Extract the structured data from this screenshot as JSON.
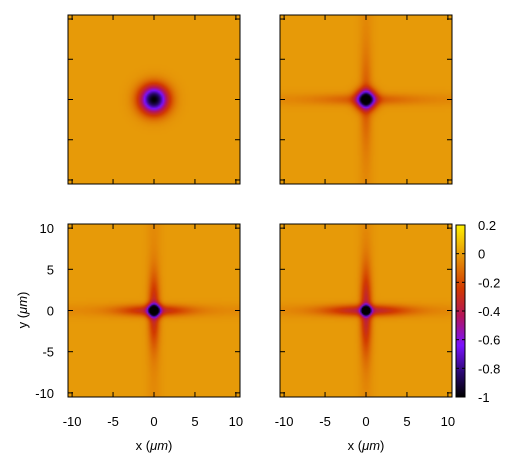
{
  "chart_data": {
    "type": "heatmap",
    "layout": "2x2 grid of panels",
    "shared_x_axis": {
      "label_prefix": "x (",
      "label_unit": "μm",
      "label_suffix": ")",
      "range": [
        -10.5,
        10.5
      ],
      "ticks": [
        -10,
        -5,
        0,
        5,
        10
      ],
      "tick_labels": [
        "-10",
        "-5",
        "0",
        "5",
        "10"
      ]
    },
    "shared_y_axis": {
      "label_prefix": "y (",
      "label_unit": "μm",
      "label_suffix": ")",
      "range": [
        -10.5,
        10.5
      ],
      "ticks": [
        -10,
        -5,
        0,
        5,
        10
      ],
      "tick_labels": [
        "-10",
        "-5",
        "0",
        "5",
        "10"
      ]
    },
    "colorbar": {
      "range": [
        -1,
        0.2
      ],
      "ticks": [
        0.2,
        0,
        -0.2,
        -0.4,
        -0.6,
        -0.8,
        -1
      ],
      "tick_labels": [
        "0.2",
        "0",
        "-0.2",
        "-0.4",
        "-0.6",
        "-0.8",
        "-1"
      ],
      "palette": "black-purple-red-orange-yellow"
    },
    "panels": [
      {
        "position": "top-left",
        "x_tick_labels_shown": false,
        "y_tick_labels_shown": false,
        "center": [
          0,
          0
        ],
        "min_value": -1,
        "background_value": 0,
        "feature": "isotropic circular dip",
        "core_radius": 1.2,
        "cross_arm_strength": 0,
        "cross_arm_length": 0
      },
      {
        "position": "top-right",
        "x_tick_labels_shown": false,
        "y_tick_labels_shown": false,
        "center": [
          0,
          0
        ],
        "min_value": -1,
        "background_value": 0,
        "feature": "dip with weak cross arms",
        "core_radius": 0.8,
        "cross_arm_strength": 0.12,
        "cross_arm_length": 4
      },
      {
        "position": "bottom-left",
        "x_tick_labels_shown": true,
        "y_tick_labels_shown": true,
        "center": [
          0,
          0
        ],
        "min_value": -1,
        "background_value": 0,
        "feature": "dip with cross-shaped arms",
        "core_radius": 0.5,
        "cross_arm_strength": 0.3,
        "cross_arm_length": 3
      },
      {
        "position": "bottom-right",
        "x_tick_labels_shown": true,
        "y_tick_labels_shown": false,
        "center": [
          0,
          0
        ],
        "min_value": -1,
        "background_value": 0,
        "feature": "dip with stronger cross-shaped arms",
        "core_radius": 0.4,
        "cross_arm_strength": 0.34,
        "cross_arm_length": 3.5
      }
    ]
  }
}
